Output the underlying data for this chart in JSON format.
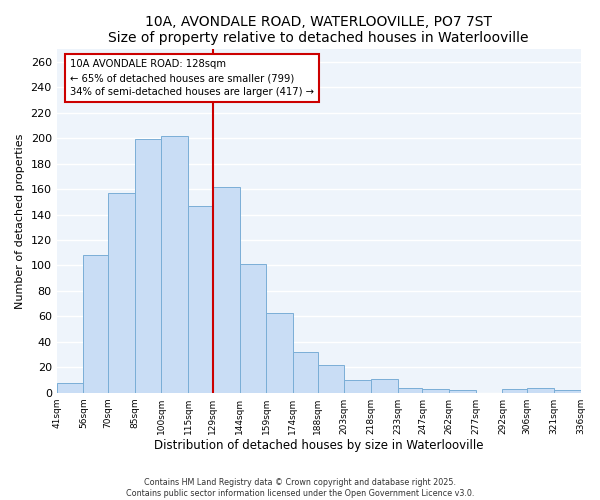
{
  "title": "10A, AVONDALE ROAD, WATERLOOVILLE, PO7 7ST",
  "subtitle": "Size of property relative to detached houses in Waterlooville",
  "xlabel": "Distribution of detached houses by size in Waterlooville",
  "ylabel": "Number of detached properties",
  "bar_edges": [
    41,
    56,
    70,
    85,
    100,
    115,
    129,
    144,
    159,
    174,
    188,
    203,
    218,
    233,
    247,
    262,
    277,
    292,
    306,
    321,
    336
  ],
  "bar_heights": [
    8,
    108,
    157,
    199,
    202,
    147,
    162,
    101,
    63,
    32,
    22,
    10,
    11,
    4,
    3,
    2,
    0,
    3,
    4,
    2
  ],
  "bar_color": "#c9ddf5",
  "bar_edge_color": "#7aaed6",
  "vline_x": 129,
  "vline_color": "#cc0000",
  "ylim": [
    0,
    270
  ],
  "yticks": [
    0,
    20,
    40,
    60,
    80,
    100,
    120,
    140,
    160,
    180,
    200,
    220,
    240,
    260
  ],
  "annotation_title": "10A AVONDALE ROAD: 128sqm",
  "annotation_line1": "← 65% of detached houses are smaller (799)",
  "annotation_line2": "34% of semi-detached houses are larger (417) →",
  "annotation_box_color": "#ffffff",
  "annotation_box_edge": "#cc0000",
  "footer_line1": "Contains HM Land Registry data © Crown copyright and database right 2025.",
  "footer_line2": "Contains public sector information licensed under the Open Government Licence v3.0.",
  "bg_color": "#ffffff",
  "plot_bg_color": "#eef4fb",
  "tick_labels": [
    "41sqm",
    "56sqm",
    "70sqm",
    "85sqm",
    "100sqm",
    "115sqm",
    "129sqm",
    "144sqm",
    "159sqm",
    "174sqm",
    "188sqm",
    "203sqm",
    "218sqm",
    "233sqm",
    "247sqm",
    "262sqm",
    "277sqm",
    "292sqm",
    "306sqm",
    "321sqm",
    "336sqm"
  ],
  "title_fontsize": 10,
  "subtitle_fontsize": 8.5
}
